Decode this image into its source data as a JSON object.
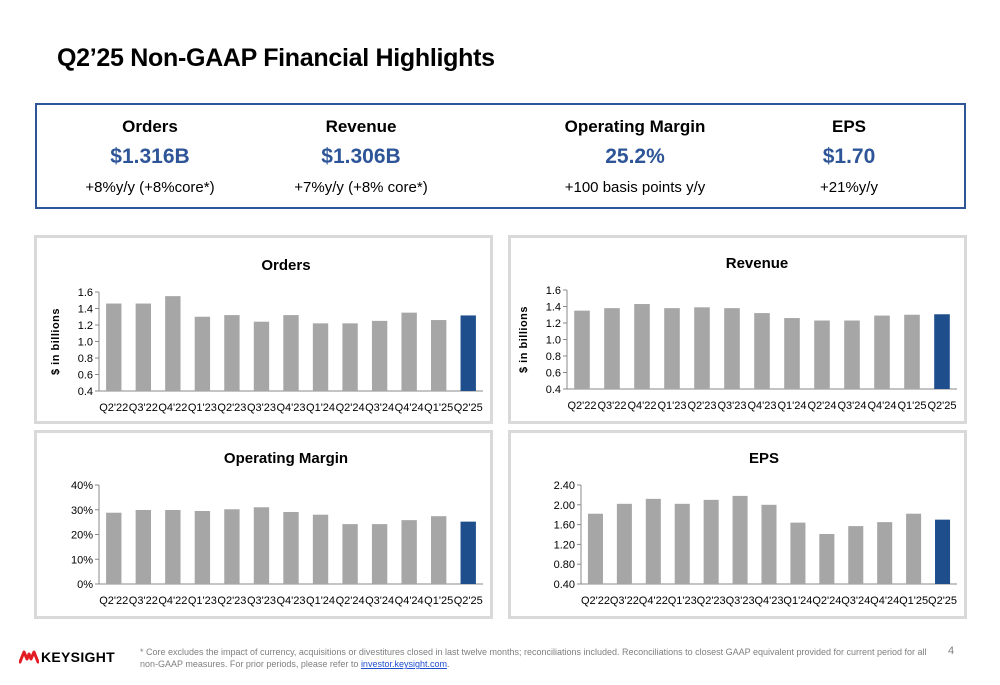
{
  "title": "Q2’25 Non-GAAP Financial Highlights",
  "kpis": [
    {
      "label": "Orders",
      "value": "$1.316B",
      "sub": "+8%y/y (+8%core*)"
    },
    {
      "label": "Revenue",
      "value": "$1.306B",
      "sub": "+7%y/y (+8% core*)"
    },
    {
      "label": "Operating Margin",
      "value": "25.2%",
      "sub": "+100 basis points y/y"
    },
    {
      "label": "EPS",
      "value": "$1.70",
      "sub": "+21%y/y"
    }
  ],
  "chart_data": [
    {
      "type": "bar",
      "title": "Orders",
      "ylabel": "$ in billions",
      "ylim": [
        0.4,
        1.6
      ],
      "yticks": [
        "0.4",
        "0.6",
        "0.8",
        "1.0",
        "1.2",
        "1.4",
        "1.6"
      ],
      "categories": [
        "Q2'22",
        "Q3'22",
        "Q4'22",
        "Q1'23",
        "Q2'23",
        "Q3'23",
        "Q4'23",
        "Q1'24",
        "Q2'24",
        "Q3'24",
        "Q4'24",
        "Q1'25",
        "Q2'25"
      ],
      "values": [
        1.46,
        1.46,
        1.55,
        1.3,
        1.32,
        1.24,
        1.32,
        1.22,
        1.22,
        1.25,
        1.35,
        1.26,
        1.316
      ],
      "highlight_index": 12
    },
    {
      "type": "bar",
      "title": "Revenue",
      "ylabel": "$ in billions",
      "ylim": [
        0.4,
        1.6
      ],
      "yticks": [
        "0.4",
        "0.6",
        "0.8",
        "1.0",
        "1.2",
        "1.4",
        "1.6"
      ],
      "categories": [
        "Q2'22",
        "Q3'22",
        "Q4'22",
        "Q1'23",
        "Q2'23",
        "Q3'23",
        "Q4'23",
        "Q1'24",
        "Q2'24",
        "Q3'24",
        "Q4'24",
        "Q1'25",
        "Q2'25"
      ],
      "values": [
        1.35,
        1.38,
        1.43,
        1.38,
        1.39,
        1.38,
        1.32,
        1.26,
        1.23,
        1.23,
        1.29,
        1.3,
        1.306
      ],
      "highlight_index": 12
    },
    {
      "type": "bar",
      "title": "Operating Margin",
      "ylabel": "",
      "ylim": [
        0,
        40
      ],
      "yticks": [
        "0%",
        "10%",
        "20%",
        "30%",
        "40%"
      ],
      "categories": [
        "Q2'22",
        "Q3'22",
        "Q4'22",
        "Q1'23",
        "Q2'23",
        "Q3'23",
        "Q4'23",
        "Q1'24",
        "Q2'24",
        "Q3'24",
        "Q4'24",
        "Q1'25",
        "Q2'25"
      ],
      "values": [
        28.8,
        29.9,
        29.9,
        29.5,
        30.2,
        31.0,
        29.1,
        28.0,
        24.2,
        24.2,
        25.8,
        27.4,
        25.2
      ],
      "highlight_index": 12
    },
    {
      "type": "bar",
      "title": "EPS",
      "ylabel": "",
      "ylim": [
        0.4,
        2.4
      ],
      "yticks": [
        "0.40",
        "0.80",
        "1.20",
        "1.60",
        "2.00",
        "2.40"
      ],
      "categories": [
        "Q2'22",
        "Q3'22",
        "Q4'22",
        "Q1'23",
        "Q2'23",
        "Q3'23",
        "Q4'23",
        "Q1'24",
        "Q2'24",
        "Q3'24",
        "Q4'24",
        "Q1'25",
        "Q2'25"
      ],
      "values": [
        1.82,
        2.02,
        2.12,
        2.02,
        2.1,
        2.18,
        2.0,
        1.64,
        1.41,
        1.57,
        1.65,
        1.82,
        1.7
      ],
      "highlight_index": 12
    }
  ],
  "colors": {
    "bar": "#a6a6a6",
    "highlight": "#1f4e8c",
    "accent": "#2e5597",
    "panel_border": "#d9d9d9"
  },
  "footer": {
    "logo_icon": "keysight-wave-icon",
    "logo_text": "KEYSIGHT",
    "footnote": "* Core excludes the impact of currency, acquisitions or divestitures closed in last twelve months; reconciliations included. Reconciliations to closest GAAP equivalent provided for current period for all non-GAAP measures. For prior periods, please refer to ",
    "link_text": "investor.keysight.com",
    "footnote_end": ".",
    "page_number": "4"
  }
}
